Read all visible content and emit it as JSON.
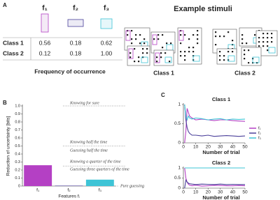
{
  "panel_labels": [
    "A",
    "B",
    "C"
  ],
  "table": {
    "header": [
      "f₁",
      "f₂",
      "f₃"
    ],
    "rows": [
      [
        "Class 1",
        "0.56",
        "0.18",
        "0.62"
      ],
      [
        "Class 2",
        "0.12",
        "0.18",
        "1.00"
      ]
    ],
    "caption": "Frequency of occurrence"
  },
  "stimuli": {
    "title": "Example stimuli",
    "labels": [
      "Class 1",
      "Class 2"
    ]
  },
  "chart_data": [
    {
      "type": "bar",
      "ylabel": "Reduction of uncertainty [bits]",
      "xlabel": "Features fᵢ",
      "categories": [
        "f₁",
        "f₂",
        "f₃"
      ],
      "values": [
        0.26,
        0.005,
        0.08
      ],
      "colors": [
        "#b440c4",
        "#4a3f9a",
        "#3ec4d6"
      ],
      "ylim": [
        0,
        1
      ],
      "yticks": [
        0,
        0.1,
        0.2,
        0.3,
        0.4,
        0.5,
        0.6,
        0.7,
        0.8,
        0.9,
        {
          "value": 1,
          "label": "1.0"
        }
      ],
      "reference_lines": [
        1,
        0.5,
        0.25,
        0
      ],
      "annotations": [
        "Knowing for sure",
        "Knowing half the time",
        "Guessing half the time",
        "Knowing a quarter of the time",
        "Guessing three quarters of the time",
        "Pure guessing"
      ]
    },
    {
      "type": "line",
      "title": "Class 1",
      "xlabel": "Number of trial",
      "x": [
        1,
        2,
        3,
        4,
        5,
        7,
        10,
        15,
        20,
        25,
        30,
        35,
        40,
        45,
        50
      ],
      "series": [
        {
          "name": "f₁",
          "color": "#b440c4",
          "values": [
            0,
            0.3,
            0.9,
            0.8,
            0.7,
            0.65,
            0.6,
            0.62,
            0.6,
            0.58,
            0.6,
            0.6,
            0.58,
            0.57,
            0.56
          ]
        },
        {
          "name": "f₂",
          "color": "#4a3f9a",
          "values": [
            1,
            0.6,
            0.4,
            0.3,
            0.25,
            0.2,
            0.2,
            0.18,
            0.2,
            0.17,
            0.18,
            0.19,
            0.18,
            0.17,
            0.18
          ]
        },
        {
          "name": "f₃",
          "color": "#3ec4d6",
          "values": [
            1,
            0.7,
            0.6,
            0.7,
            0.65,
            0.62,
            0.65,
            0.63,
            0.6,
            0.62,
            0.63,
            0.6,
            0.62,
            0.61,
            0.62
          ]
        }
      ],
      "xlim": [
        0,
        50
      ],
      "xticks": [
        0,
        10,
        20,
        30,
        40,
        50
      ],
      "ylim": [
        0,
        1
      ],
      "yticks": [
        0,
        0.5,
        1
      ]
    },
    {
      "type": "line",
      "title": "Class 2",
      "xlabel": "Number of trial",
      "x": [
        1,
        2,
        3,
        4,
        5,
        7,
        10,
        15,
        20,
        25,
        30,
        35,
        40,
        45,
        50
      ],
      "series": [
        {
          "color": "#b440c4",
          "values": [
            1,
            0.5,
            0.3,
            0.2,
            0.15,
            0.12,
            0.15,
            0.1,
            0.12,
            0.14,
            0.13,
            0.12,
            0.12,
            0.13,
            0.12
          ]
        },
        {
          "color": "#4a3f9a",
          "values": [
            0,
            0.4,
            0.3,
            0.25,
            0.22,
            0.2,
            0.18,
            0.2,
            0.19,
            0.18,
            0.2,
            0.18,
            0.19,
            0.18,
            0.18
          ]
        },
        {
          "color": "#3ec4d6",
          "values": [
            1,
            1,
            1,
            1,
            1,
            1,
            1,
            1,
            1,
            1,
            1,
            1,
            1,
            1,
            1
          ]
        }
      ],
      "xlim": [
        0,
        50
      ],
      "xticks": [
        0,
        10,
        20,
        30,
        40,
        50
      ],
      "ylim": [
        0,
        1
      ],
      "yticks": [
        0,
        0.5,
        1
      ]
    }
  ]
}
